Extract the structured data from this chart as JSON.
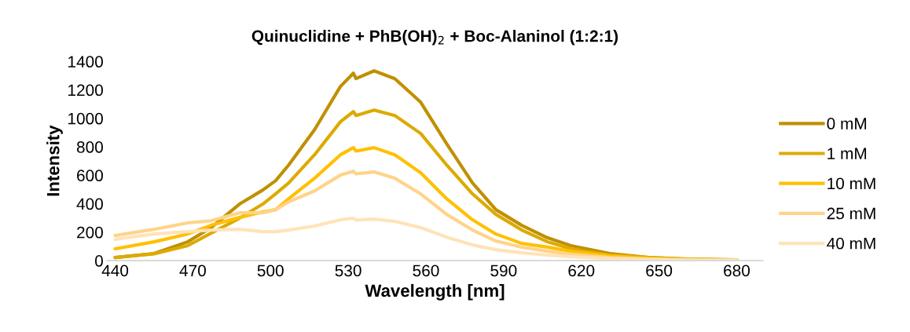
{
  "chart_data": {
    "type": "line",
    "title": "Quinuclidine + PhB(OH)$_{2}$ + Boc-Alaninol (1:2:1)",
    "xlabel": "Wavelength [nm]",
    "ylabel": "Intensity",
    "x": [
      440,
      455,
      468,
      477,
      488,
      497,
      502,
      507,
      517,
      527,
      532,
      533,
      540,
      548,
      558,
      568,
      578,
      587,
      597,
      607,
      616,
      631,
      646,
      661,
      680
    ],
    "series": [
      {
        "name": "0 mM",
        "color": "#c09000",
        "values": [
          22,
          50,
          132,
          231,
          397,
          496,
          562,
          672,
          920,
          1224,
          1317,
          1279,
          1334,
          1279,
          1113,
          821,
          546,
          358,
          248,
          160,
          105,
          50,
          22,
          11,
          5
        ]
      },
      {
        "name": "1 mM",
        "color": "#dcaa00",
        "values": [
          22,
          48,
          105,
          193,
          298,
          397,
          470,
          546,
          744,
          976,
          1047,
          1020,
          1058,
          1020,
          893,
          672,
          469,
          325,
          215,
          132,
          83,
          39,
          22,
          10,
          5
        ]
      },
      {
        "name": "10 mM",
        "color": "#ffc000",
        "values": [
          83,
          132,
          187,
          248,
          303,
          342,
          358,
          435,
          579,
          744,
          794,
          770,
          794,
          744,
          617,
          435,
          287,
          187,
          121,
          95,
          66,
          33,
          17,
          8,
          4
        ]
      },
      {
        "name": "25 mM",
        "color": "#ffd38a",
        "values": [
          176,
          220,
          265,
          280,
          336,
          336,
          358,
          413,
          490,
          601,
          628,
          610,
          623,
          579,
          469,
          325,
          215,
          138,
          94,
          66,
          45,
          22,
          11,
          6,
          3
        ]
      },
      {
        "name": "40 mM",
        "color": "#ffe3b8",
        "values": [
          149,
          187,
          204,
          215,
          220,
          204,
          204,
          215,
          243,
          287,
          298,
          285,
          292,
          276,
          232,
          165,
          110,
          77,
          55,
          39,
          28,
          14,
          7,
          4,
          2
        ]
      }
    ],
    "xlim": [
      437,
      690
    ],
    "xticks": [
      440,
      470,
      500,
      530,
      560,
      590,
      620,
      650,
      680
    ],
    "ylim": [
      0,
      1400
    ],
    "yticks": [
      0,
      200,
      400,
      600,
      800,
      1000,
      1200,
      1400
    ],
    "grid": false,
    "legend": "right",
    "marker": "none",
    "line_style": "solid"
  }
}
